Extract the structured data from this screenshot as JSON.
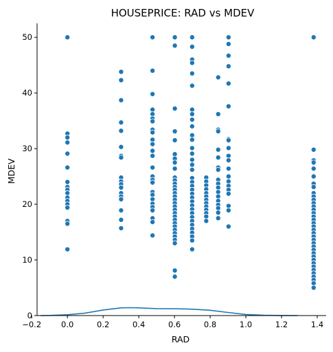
{
  "chart_data": {
    "type": "scatter",
    "title": "HOUSEPRICE: RAD  vs MDEV",
    "xlabel": "RAD",
    "ylabel": "MDEV",
    "xlim": [
      -0.17,
      1.45
    ],
    "ylim": [
      0,
      52.5
    ],
    "x_ticks": [
      -0.2,
      0.0,
      0.2,
      0.4,
      0.6,
      0.8,
      1.0,
      1.2,
      1.4
    ],
    "x_tick_labels": [
      "−0.2",
      "0.0",
      "0.2",
      "0.4",
      "0.6",
      "0.8",
      "1.0",
      "1.2",
      "1.4"
    ],
    "y_ticks": [
      0,
      10,
      20,
      30,
      40,
      50
    ],
    "y_tick_labels": [
      "0",
      "10",
      "20",
      "30",
      "40",
      "50"
    ],
    "grid": false,
    "colors": {
      "points": "#1f77b4",
      "kde": "#1f77b4",
      "axis": "#000000"
    },
    "series": [
      {
        "points": [
          [
            0.0,
            50.0
          ],
          [
            0.0,
            32.7
          ],
          [
            0.0,
            32.0
          ],
          [
            0.0,
            31.1
          ],
          [
            0.0,
            29.1
          ],
          [
            0.0,
            26.6
          ],
          [
            0.0,
            24.0
          ],
          [
            0.0,
            23.1
          ],
          [
            0.0,
            22.6
          ],
          [
            0.0,
            22.0
          ],
          [
            0.0,
            21.2
          ],
          [
            0.0,
            20.6
          ],
          [
            0.0,
            20.0
          ],
          [
            0.0,
            19.4
          ],
          [
            0.0,
            17.0
          ],
          [
            0.0,
            16.5
          ],
          [
            0.0,
            11.9
          ],
          [
            0.301,
            43.8
          ],
          [
            0.301,
            42.3
          ],
          [
            0.301,
            38.7
          ],
          [
            0.301,
            34.7
          ],
          [
            0.301,
            33.2
          ],
          [
            0.301,
            30.3
          ],
          [
            0.301,
            28.7
          ],
          [
            0.301,
            28.4
          ],
          [
            0.301,
            24.8
          ],
          [
            0.301,
            24.1
          ],
          [
            0.301,
            23.6
          ],
          [
            0.301,
            23.0
          ],
          [
            0.301,
            22.0
          ],
          [
            0.301,
            21.4
          ],
          [
            0.301,
            20.9
          ],
          [
            0.301,
            18.9
          ],
          [
            0.301,
            17.2
          ],
          [
            0.301,
            15.7
          ],
          [
            0.477,
            50.0
          ],
          [
            0.477,
            44.0
          ],
          [
            0.477,
            39.8
          ],
          [
            0.477,
            37.0
          ],
          [
            0.477,
            36.2
          ],
          [
            0.477,
            35.4
          ],
          [
            0.477,
            34.9
          ],
          [
            0.477,
            33.4
          ],
          [
            0.477,
            32.9
          ],
          [
            0.477,
            31.6
          ],
          [
            0.477,
            30.8
          ],
          [
            0.477,
            29.6
          ],
          [
            0.477,
            28.7
          ],
          [
            0.477,
            26.6
          ],
          [
            0.477,
            25.0
          ],
          [
            0.477,
            24.4
          ],
          [
            0.477,
            23.9
          ],
          [
            0.477,
            22.2
          ],
          [
            0.477,
            21.7
          ],
          [
            0.477,
            20.9
          ],
          [
            0.477,
            20.1
          ],
          [
            0.477,
            19.5
          ],
          [
            0.477,
            18.9
          ],
          [
            0.477,
            17.5
          ],
          [
            0.477,
            16.8
          ],
          [
            0.477,
            14.4
          ],
          [
            0.602,
            50.0
          ],
          [
            0.602,
            48.5
          ],
          [
            0.602,
            37.2
          ],
          [
            0.602,
            33.1
          ],
          [
            0.602,
            31.5
          ],
          [
            0.602,
            29.0
          ],
          [
            0.602,
            28.2
          ],
          [
            0.602,
            27.5
          ],
          [
            0.602,
            26.4
          ],
          [
            0.602,
            24.8
          ],
          [
            0.602,
            24.3
          ],
          [
            0.602,
            23.7
          ],
          [
            0.602,
            23.1
          ],
          [
            0.602,
            22.6
          ],
          [
            0.602,
            22.0
          ],
          [
            0.602,
            21.4
          ],
          [
            0.602,
            20.8
          ],
          [
            0.602,
            20.2
          ],
          [
            0.602,
            19.6
          ],
          [
            0.602,
            19.0
          ],
          [
            0.602,
            18.4
          ],
          [
            0.602,
            17.8
          ],
          [
            0.602,
            17.2
          ],
          [
            0.602,
            16.6
          ],
          [
            0.602,
            16.0
          ],
          [
            0.602,
            15.4
          ],
          [
            0.602,
            14.8
          ],
          [
            0.602,
            14.2
          ],
          [
            0.602,
            13.6
          ],
          [
            0.602,
            13.0
          ],
          [
            0.602,
            8.1
          ],
          [
            0.602,
            7.0
          ],
          [
            0.699,
            50.0
          ],
          [
            0.699,
            48.3
          ],
          [
            0.699,
            46.0
          ],
          [
            0.699,
            45.4
          ],
          [
            0.699,
            43.5
          ],
          [
            0.699,
            41.3
          ],
          [
            0.699,
            37.0
          ],
          [
            0.699,
            36.2
          ],
          [
            0.699,
            35.2
          ],
          [
            0.699,
            34.0
          ],
          [
            0.699,
            32.4
          ],
          [
            0.699,
            31.6
          ],
          [
            0.699,
            30.1
          ],
          [
            0.699,
            29.1
          ],
          [
            0.699,
            28.0
          ],
          [
            0.699,
            27.1
          ],
          [
            0.699,
            26.2
          ],
          [
            0.699,
            24.7
          ],
          [
            0.699,
            24.0
          ],
          [
            0.699,
            23.3
          ],
          [
            0.699,
            22.6
          ],
          [
            0.699,
            21.9
          ],
          [
            0.699,
            21.2
          ],
          [
            0.699,
            20.5
          ],
          [
            0.699,
            19.8
          ],
          [
            0.699,
            19.1
          ],
          [
            0.699,
            18.4
          ],
          [
            0.699,
            17.7
          ],
          [
            0.699,
            17.0
          ],
          [
            0.699,
            16.3
          ],
          [
            0.699,
            15.6
          ],
          [
            0.699,
            14.9
          ],
          [
            0.699,
            14.2
          ],
          [
            0.699,
            13.5
          ],
          [
            0.699,
            11.9
          ],
          [
            0.778,
            24.8
          ],
          [
            0.778,
            24.1
          ],
          [
            0.778,
            23.4
          ],
          [
            0.778,
            22.7
          ],
          [
            0.778,
            22.0
          ],
          [
            0.778,
            21.4
          ],
          [
            0.778,
            20.8
          ],
          [
            0.778,
            20.2
          ],
          [
            0.778,
            19.6
          ],
          [
            0.778,
            19.0
          ],
          [
            0.778,
            18.4
          ],
          [
            0.778,
            17.8
          ],
          [
            0.778,
            17.0
          ],
          [
            0.845,
            42.8
          ],
          [
            0.845,
            36.2
          ],
          [
            0.845,
            33.4
          ],
          [
            0.845,
            33.1
          ],
          [
            0.845,
            29.8
          ],
          [
            0.845,
            28.4
          ],
          [
            0.845,
            26.6
          ],
          [
            0.845,
            26.2
          ],
          [
            0.845,
            24.4
          ],
          [
            0.845,
            23.7
          ],
          [
            0.845,
            23.0
          ],
          [
            0.845,
            22.2
          ],
          [
            0.845,
            21.4
          ],
          [
            0.845,
            20.6
          ],
          [
            0.845,
            19.9
          ],
          [
            0.845,
            19.3
          ],
          [
            0.845,
            18.5
          ],
          [
            0.845,
            17.5
          ],
          [
            0.903,
            50.0
          ],
          [
            0.903,
            48.8
          ],
          [
            0.903,
            46.7
          ],
          [
            0.903,
            44.8
          ],
          [
            0.903,
            41.7
          ],
          [
            0.903,
            37.6
          ],
          [
            0.903,
            31.7
          ],
          [
            0.903,
            31.5
          ],
          [
            0.903,
            30.1
          ],
          [
            0.903,
            28.7
          ],
          [
            0.903,
            27.9
          ],
          [
            0.903,
            26.4
          ],
          [
            0.903,
            25.0
          ],
          [
            0.903,
            24.1
          ],
          [
            0.903,
            23.3
          ],
          [
            0.903,
            22.6
          ],
          [
            0.903,
            21.9
          ],
          [
            0.903,
            19.7
          ],
          [
            0.903,
            18.9
          ],
          [
            0.903,
            16.0
          ],
          [
            1.38,
            50.0
          ],
          [
            1.38,
            29.8
          ],
          [
            1.38,
            27.9
          ],
          [
            1.38,
            27.5
          ],
          [
            1.38,
            26.4
          ],
          [
            1.38,
            25.0
          ],
          [
            1.38,
            23.7
          ],
          [
            1.38,
            23.1
          ],
          [
            1.38,
            22.0
          ],
          [
            1.38,
            21.4
          ],
          [
            1.38,
            20.8
          ],
          [
            1.38,
            20.2
          ],
          [
            1.38,
            19.6
          ],
          [
            1.38,
            19.0
          ],
          [
            1.38,
            18.4
          ],
          [
            1.38,
            17.8
          ],
          [
            1.38,
            17.2
          ],
          [
            1.38,
            16.6
          ],
          [
            1.38,
            16.0
          ],
          [
            1.38,
            15.4
          ],
          [
            1.38,
            14.8
          ],
          [
            1.38,
            14.2
          ],
          [
            1.38,
            13.6
          ],
          [
            1.38,
            13.0
          ],
          [
            1.38,
            12.4
          ],
          [
            1.38,
            11.8
          ],
          [
            1.38,
            11.2
          ],
          [
            1.38,
            10.6
          ],
          [
            1.38,
            10.0
          ],
          [
            1.38,
            9.4
          ],
          [
            1.38,
            8.8
          ],
          [
            1.38,
            8.2
          ],
          [
            1.38,
            7.6
          ],
          [
            1.38,
            7.0
          ],
          [
            1.38,
            6.4
          ],
          [
            1.38,
            5.8
          ],
          [
            1.38,
            5.0
          ]
        ]
      }
    ],
    "kde": {
      "x": [
        -0.15,
        -0.1,
        0.0,
        0.1,
        0.2,
        0.3,
        0.35,
        0.4,
        0.5,
        0.6,
        0.7,
        0.8,
        0.9,
        1.0,
        1.1,
        1.2,
        1.29
      ],
      "y": [
        0.0,
        0.02,
        0.15,
        0.45,
        1.0,
        1.38,
        1.42,
        1.38,
        1.25,
        1.22,
        1.15,
        0.95,
        0.55,
        0.2,
        0.06,
        0.01,
        0.0
      ]
    }
  }
}
